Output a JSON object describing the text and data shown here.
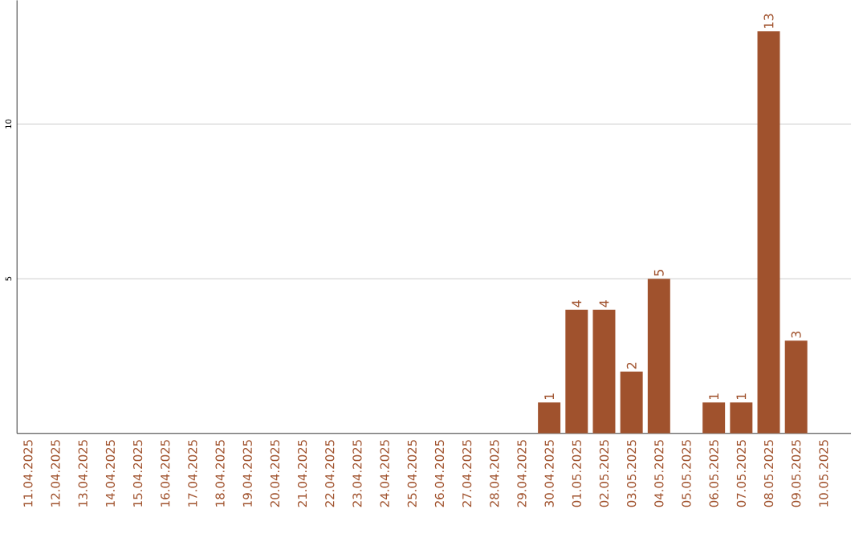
{
  "chart_data": {
    "type": "bar",
    "categories": [
      "11.04.2025",
      "12.04.2025",
      "13.04.2025",
      "14.04.2025",
      "15.04.2025",
      "16.04.2025",
      "17.04.2025",
      "18.04.2025",
      "19.04.2025",
      "20.04.2025",
      "21.04.2025",
      "22.04.2025",
      "23.04.2025",
      "24.04.2025",
      "25.04.2025",
      "26.04.2025",
      "27.04.2025",
      "28.04.2025",
      "29.04.2025",
      "30.04.2025",
      "01.05.2025",
      "02.05.2025",
      "03.05.2025",
      "04.05.2025",
      "05.05.2025",
      "06.05.2025",
      "07.05.2025",
      "08.05.2025",
      "09.05.2025",
      "10.05.2025"
    ],
    "values": [
      0,
      0,
      0,
      0,
      0,
      0,
      0,
      0,
      0,
      0,
      0,
      0,
      0,
      0,
      0,
      0,
      0,
      0,
      0,
      1,
      4,
      4,
      2,
      5,
      0,
      1,
      1,
      13,
      3,
      0
    ],
    "value_labels": [
      null,
      null,
      null,
      null,
      null,
      null,
      null,
      null,
      null,
      null,
      null,
      null,
      null,
      null,
      null,
      null,
      null,
      null,
      null,
      "1",
      "4",
      "4",
      "2",
      "5",
      null,
      "1",
      "1",
      "13",
      "3",
      null
    ],
    "color": "#a0522d",
    "ylim": [
      0,
      14
    ],
    "yticks": [
      5,
      10
    ],
    "grid": "y"
  }
}
